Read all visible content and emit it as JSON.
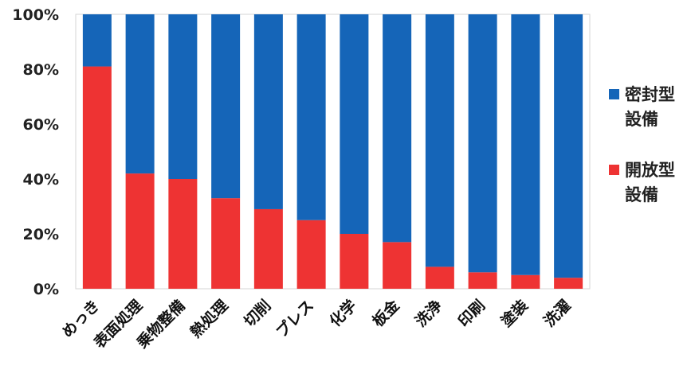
{
  "chart_data": {
    "type": "bar",
    "stacked": true,
    "percent_scale": true,
    "categories": [
      "めっき",
      "表面処理",
      "乗物整備",
      "熱処理",
      "切削",
      "プレス",
      "化学",
      "板金",
      "洗浄",
      "印刷",
      "塗装",
      "洗濯"
    ],
    "series": [
      {
        "name": "開放型設備",
        "color": "#ee3333",
        "values": [
          81,
          42,
          40,
          33,
          29,
          25,
          20,
          17,
          8,
          6,
          5,
          4
        ]
      },
      {
        "name": "密封型設備",
        "color": "#1565b8",
        "values": [
          19,
          58,
          60,
          67,
          71,
          75,
          80,
          83,
          92,
          94,
          95,
          96
        ]
      }
    ],
    "ylim": [
      0,
      100
    ],
    "yticks": [
      "0%",
      "20%",
      "40%",
      "60%",
      "80%",
      "100%"
    ],
    "grid": false,
    "legend_position": "right",
    "legend": [
      {
        "lines": [
          "密封型",
          "設備"
        ],
        "color": "#1565b8"
      },
      {
        "lines": [
          "開放型",
          "設備"
        ],
        "color": "#ee3333"
      }
    ]
  }
}
